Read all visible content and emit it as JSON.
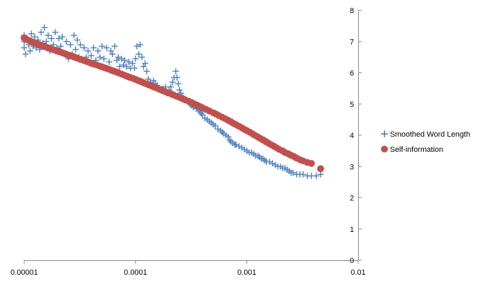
{
  "chart_data": {
    "type": "scatter",
    "title": "",
    "xlabel": "",
    "ylabel": "",
    "x_scale": "log",
    "xlim": [
      1e-05,
      0.01
    ],
    "ylim": [
      0,
      8
    ],
    "y_axis_position": "right",
    "grid": false,
    "legend_position": "right",
    "x_ticks": [
      "0.00001",
      "0.0001",
      "0.001",
      "0.01"
    ],
    "y_ticks": [
      "0",
      "1",
      "2",
      "3",
      "4",
      "5",
      "6",
      "7",
      "8"
    ],
    "series": [
      {
        "name": "Smoothed Word Length",
        "marker": "plus",
        "color": "#4a7ebb",
        "points": [
          [
            1e-05,
            7.0
          ],
          [
            1e-05,
            6.8
          ],
          [
            1e-05,
            7.2
          ],
          [
            1.03e-05,
            6.6
          ],
          [
            1.06e-05,
            7.1
          ],
          [
            1.1e-05,
            6.9
          ],
          [
            1.13e-05,
            6.7
          ],
          [
            1.16e-05,
            7.25
          ],
          [
            1.2e-05,
            6.85
          ],
          [
            1.24e-05,
            7.15
          ],
          [
            1.28e-05,
            6.8
          ],
          [
            1.33e-05,
            7.05
          ],
          [
            1.38e-05,
            6.75
          ],
          [
            1.42e-05,
            7.3
          ],
          [
            1.47e-05,
            6.95
          ],
          [
            1.52e-05,
            7.45
          ],
          [
            1.58e-05,
            7.0
          ],
          [
            1.64e-05,
            7.2
          ],
          [
            1.7e-05,
            6.7
          ],
          [
            1.76e-05,
            7.1
          ],
          [
            1.83e-05,
            6.9
          ],
          [
            1.9e-05,
            7.3
          ],
          [
            1.97e-05,
            6.8
          ],
          [
            2.05e-05,
            7.1
          ],
          [
            2.13e-05,
            6.85
          ],
          [
            2.2e-05,
            7.15
          ],
          [
            2.3e-05,
            6.6
          ],
          [
            2.4e-05,
            7.0
          ],
          [
            2.5e-05,
            6.45
          ],
          [
            2.6e-05,
            6.9
          ],
          [
            2.7e-05,
            6.6
          ],
          [
            2.8e-05,
            7.2
          ],
          [
            2.9e-05,
            6.75
          ],
          [
            3e-05,
            7.05
          ],
          [
            3.1e-05,
            6.5
          ],
          [
            3.2e-05,
            6.9
          ],
          [
            3.3e-05,
            6.45
          ],
          [
            3.45e-05,
            6.8
          ],
          [
            3.6e-05,
            6.5
          ],
          [
            3.75e-05,
            6.7
          ],
          [
            3.9e-05,
            6.3
          ],
          [
            4e-05,
            6.55
          ],
          [
            4.2e-05,
            6.8
          ],
          [
            4.4e-05,
            6.4
          ],
          [
            4.6e-05,
            6.7
          ],
          [
            4.8e-05,
            6.5
          ],
          [
            5e-05,
            6.85
          ],
          [
            5.2e-05,
            6.45
          ],
          [
            5.5e-05,
            6.8
          ],
          [
            5.8e-05,
            6.35
          ],
          [
            6e-05,
            6.7
          ],
          [
            6.2e-05,
            6.6
          ],
          [
            6.5e-05,
            6.85
          ],
          [
            6.8e-05,
            6.4
          ],
          [
            7e-05,
            6.5
          ],
          [
            7.2e-05,
            6.2
          ],
          [
            7.5e-05,
            6.45
          ],
          [
            7.8e-05,
            6.25
          ],
          [
            8e-05,
            6.4
          ],
          [
            8.3e-05,
            6.2
          ],
          [
            8.7e-05,
            6.35
          ],
          [
            9e-05,
            6.15
          ],
          [
            9.4e-05,
            6.3
          ],
          [
            9.8e-05,
            6.15
          ],
          [
            0.0001,
            6.45
          ],
          [
            0.000103,
            6.85
          ],
          [
            0.000107,
            6.6
          ],
          [
            0.00011,
            6.9
          ],
          [
            0.000114,
            6.5
          ],
          [
            0.000118,
            6.2
          ],
          [
            0.000122,
            6.3
          ],
          [
            0.000126,
            6.05
          ],
          [
            0.00013,
            5.8
          ],
          [
            0.000135,
            5.7
          ],
          [
            0.00014,
            5.55
          ],
          [
            0.000145,
            5.75
          ],
          [
            0.00015,
            5.65
          ],
          [
            0.000156,
            5.6
          ],
          [
            0.000162,
            5.5
          ],
          [
            0.000168,
            5.45
          ],
          [
            0.000174,
            5.5
          ],
          [
            0.00018,
            5.4
          ],
          [
            0.000186,
            5.55
          ],
          [
            0.000192,
            5.35
          ],
          [
            0.0002,
            5.45
          ],
          [
            0.000207,
            5.55
          ],
          [
            0.000215,
            5.7
          ],
          [
            0.000222,
            5.85
          ],
          [
            0.00023,
            6.05
          ],
          [
            0.000236,
            5.85
          ],
          [
            0.000242,
            5.65
          ],
          [
            0.000248,
            5.45
          ],
          [
            0.000255,
            5.35
          ],
          [
            0.000262,
            5.25
          ],
          [
            0.00027,
            5.2
          ],
          [
            0.00028,
            5.15
          ],
          [
            0.00029,
            5.1
          ],
          [
            0.0003,
            5.05
          ],
          [
            0.00031,
            5.0
          ],
          [
            0.00032,
            4.95
          ],
          [
            0.00033,
            4.9
          ],
          [
            0.00034,
            4.95
          ],
          [
            0.00035,
            4.85
          ],
          [
            0.00036,
            4.9
          ],
          [
            0.00037,
            4.8
          ],
          [
            0.00038,
            4.75
          ],
          [
            0.00039,
            4.7
          ],
          [
            0.0004,
            4.65
          ],
          [
            0.00042,
            4.55
          ],
          [
            0.00044,
            4.5
          ],
          [
            0.00046,
            4.45
          ],
          [
            0.00048,
            4.4
          ],
          [
            0.0005,
            4.35
          ],
          [
            0.00052,
            4.3
          ],
          [
            0.00055,
            4.2
          ],
          [
            0.00058,
            4.15
          ],
          [
            0.0006,
            4.1
          ],
          [
            0.00062,
            4.05
          ],
          [
            0.00065,
            4.0
          ],
          [
            0.00068,
            3.95
          ],
          [
            0.0007,
            3.85
          ],
          [
            0.00072,
            3.8
          ],
          [
            0.00075,
            3.75
          ],
          [
            0.00078,
            3.7
          ],
          [
            0.0008,
            3.7
          ],
          [
            0.00085,
            3.65
          ],
          [
            0.0009,
            3.6
          ],
          [
            0.00095,
            3.55
          ],
          [
            0.001,
            3.5
          ],
          [
            0.00105,
            3.45
          ],
          [
            0.0011,
            3.45
          ],
          [
            0.00115,
            3.4
          ],
          [
            0.0012,
            3.35
          ],
          [
            0.00126,
            3.35
          ],
          [
            0.0013,
            3.3
          ],
          [
            0.00135,
            3.25
          ],
          [
            0.0014,
            3.25
          ],
          [
            0.00145,
            3.2
          ],
          [
            0.0015,
            3.15
          ],
          [
            0.0016,
            3.15
          ],
          [
            0.0017,
            3.1
          ],
          [
            0.0018,
            3.05
          ],
          [
            0.0019,
            3.0
          ],
          [
            0.002,
            3.0
          ],
          [
            0.0021,
            2.95
          ],
          [
            0.0022,
            2.95
          ],
          [
            0.0023,
            2.9
          ],
          [
            0.0024,
            2.85
          ],
          [
            0.0025,
            2.8
          ],
          [
            0.0026,
            2.8
          ],
          [
            0.0028,
            2.75
          ],
          [
            0.003,
            2.75
          ],
          [
            0.0032,
            2.75
          ],
          [
            0.0035,
            2.7
          ],
          [
            0.0038,
            2.7
          ],
          [
            0.0042,
            2.7
          ],
          [
            0.0046,
            2.75
          ]
        ]
      },
      {
        "name": "Self-information",
        "marker": "circle",
        "color": "#c0504d",
        "points": [
          [
            1e-05,
            7.12
          ],
          [
            1.03e-05,
            7.08
          ],
          [
            1.06e-05,
            7.06
          ],
          [
            1.1e-05,
            7.04
          ],
          [
            1.13e-05,
            7.02
          ],
          [
            1.16e-05,
            7.0
          ],
          [
            1.2e-05,
            6.98
          ],
          [
            1.24e-05,
            6.96
          ],
          [
            1.28e-05,
            6.94
          ],
          [
            1.33e-05,
            6.92
          ],
          [
            1.38e-05,
            6.9
          ],
          [
            1.42e-05,
            6.88
          ],
          [
            1.47e-05,
            6.86
          ],
          [
            1.52e-05,
            6.84
          ],
          [
            1.58e-05,
            6.82
          ],
          [
            1.64e-05,
            6.8
          ],
          [
            1.7e-05,
            6.78
          ],
          [
            1.76e-05,
            6.76
          ],
          [
            1.83e-05,
            6.74
          ],
          [
            1.9e-05,
            6.72
          ],
          [
            1.97e-05,
            6.7
          ],
          [
            2.05e-05,
            6.68
          ],
          [
            2.13e-05,
            6.66
          ],
          [
            2.2e-05,
            6.64
          ],
          [
            2.3e-05,
            6.62
          ],
          [
            2.4e-05,
            6.59
          ],
          [
            2.5e-05,
            6.57
          ],
          [
            2.6e-05,
            6.55
          ],
          [
            2.7e-05,
            6.53
          ],
          [
            2.8e-05,
            6.51
          ],
          [
            2.9e-05,
            6.49
          ],
          [
            3e-05,
            6.47
          ],
          [
            3.2e-05,
            6.43
          ],
          [
            3.4e-05,
            6.4
          ],
          [
            3.6e-05,
            6.37
          ],
          [
            3.8e-05,
            6.34
          ],
          [
            4e-05,
            6.31
          ],
          [
            4.2e-05,
            6.28
          ],
          [
            4.5e-05,
            6.25
          ],
          [
            4.8e-05,
            6.21
          ],
          [
            5e-05,
            6.19
          ],
          [
            5.3e-05,
            6.16
          ],
          [
            5.6e-05,
            6.13
          ],
          [
            6e-05,
            6.09
          ],
          [
            6.3e-05,
            6.06
          ],
          [
            6.7e-05,
            6.03
          ],
          [
            7e-05,
            6.0
          ],
          [
            7.5e-05,
            5.96
          ],
          [
            8e-05,
            5.92
          ],
          [
            8.5e-05,
            5.88
          ],
          [
            9e-05,
            5.85
          ],
          [
            9.5e-05,
            5.82
          ],
          [
            0.0001,
            5.79
          ],
          [
            0.000106,
            5.75
          ],
          [
            0.000112,
            5.72
          ],
          [
            0.000118,
            5.68
          ],
          [
            0.000125,
            5.65
          ],
          [
            0.000132,
            5.61
          ],
          [
            0.00014,
            5.58
          ],
          [
            0.000148,
            5.54
          ],
          [
            0.000156,
            5.51
          ],
          [
            0.000165,
            5.47
          ],
          [
            0.000175,
            5.43
          ],
          [
            0.000185,
            5.4
          ],
          [
            0.000195,
            5.36
          ],
          [
            0.00021,
            5.32
          ],
          [
            0.00022,
            5.29
          ],
          [
            0.000235,
            5.25
          ],
          [
            0.00025,
            5.21
          ],
          [
            0.000265,
            5.17
          ],
          [
            0.00028,
            5.13
          ],
          [
            0.0003,
            5.09
          ],
          [
            0.00032,
            5.05
          ],
          [
            0.00034,
            5.0
          ],
          [
            0.00036,
            4.96
          ],
          [
            0.00038,
            4.92
          ],
          [
            0.0004,
            4.88
          ],
          [
            0.00043,
            4.83
          ],
          [
            0.00046,
            4.78
          ],
          [
            0.0005,
            4.72
          ],
          [
            0.00053,
            4.68
          ],
          [
            0.00056,
            4.63
          ],
          [
            0.0006,
            4.58
          ],
          [
            0.00064,
            4.53
          ],
          [
            0.00068,
            4.48
          ],
          [
            0.00072,
            4.43
          ],
          [
            0.00076,
            4.38
          ],
          [
            0.0008,
            4.34
          ],
          [
            0.00085,
            4.29
          ],
          [
            0.0009,
            4.24
          ],
          [
            0.00095,
            4.19
          ],
          [
            0.001,
            4.15
          ],
          [
            0.00106,
            4.1
          ],
          [
            0.00112,
            4.05
          ],
          [
            0.00118,
            4.0
          ],
          [
            0.00125,
            3.95
          ],
          [
            0.00132,
            3.9
          ],
          [
            0.0014,
            3.85
          ],
          [
            0.00148,
            3.8
          ],
          [
            0.00156,
            3.75
          ],
          [
            0.00165,
            3.7
          ],
          [
            0.00175,
            3.65
          ],
          [
            0.00185,
            3.6
          ],
          [
            0.00195,
            3.55
          ],
          [
            0.0021,
            3.5
          ],
          [
            0.0022,
            3.45
          ],
          [
            0.00235,
            3.41
          ],
          [
            0.0025,
            3.36
          ],
          [
            0.00265,
            3.32
          ],
          [
            0.0028,
            3.27
          ],
          [
            0.003,
            3.22
          ],
          [
            0.0032,
            3.18
          ],
          [
            0.0035,
            3.13
          ],
          [
            0.0038,
            3.1
          ],
          [
            0.0046,
            2.93
          ]
        ]
      }
    ]
  }
}
